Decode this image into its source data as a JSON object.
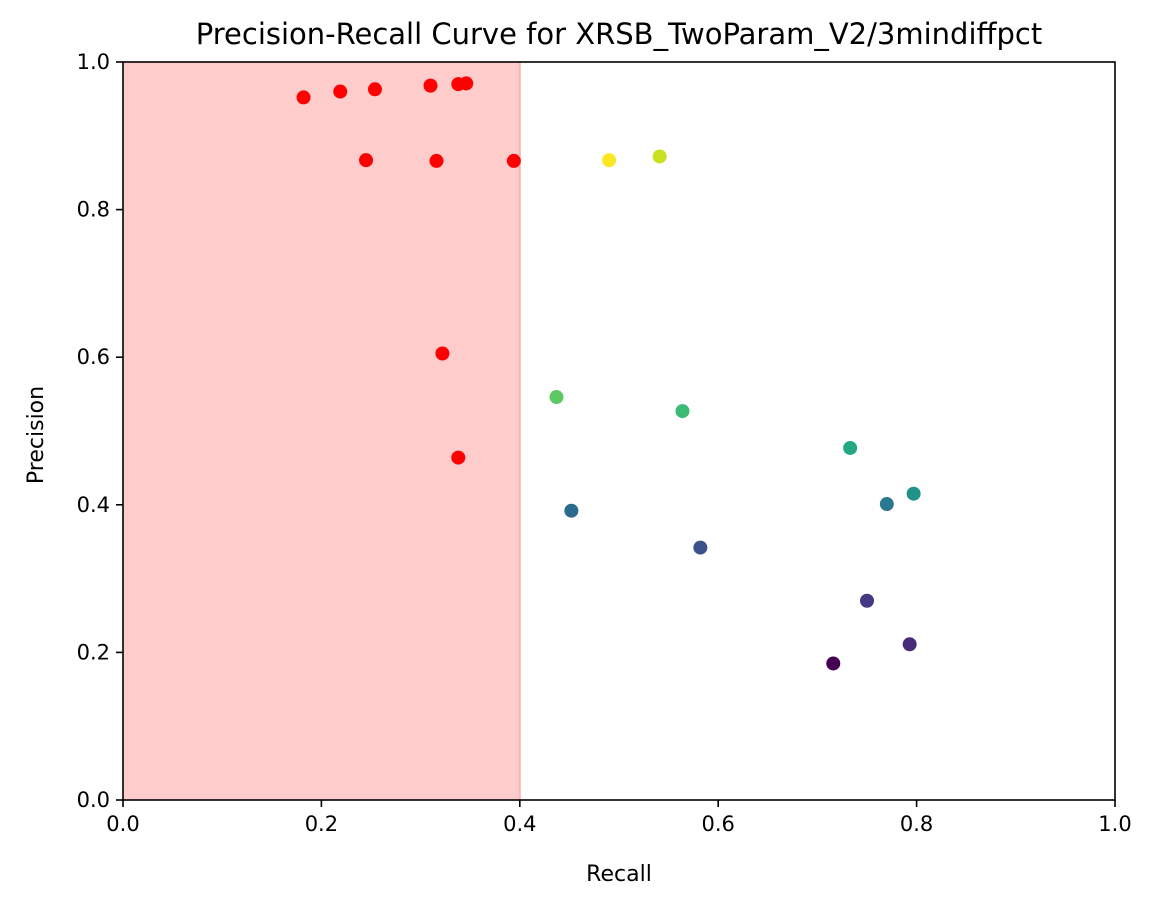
{
  "chart_data": {
    "type": "scatter",
    "title": "Precision-Recall Curve for XRSB_TwoParam_V2/3mindiffpct",
    "xlabel": "Recall",
    "ylabel": "Precision",
    "xlim": [
      0.0,
      1.0
    ],
    "ylim": [
      0.0,
      1.0
    ],
    "grid": false,
    "legend": "none",
    "x_ticks": [
      "0.0",
      "0.2",
      "0.4",
      "0.6",
      "0.8",
      "1.0"
    ],
    "y_ticks": [
      "0.0",
      "0.2",
      "0.4",
      "0.6",
      "0.8",
      "1.0"
    ],
    "shaded_region": {
      "x_range": [
        0.0,
        0.4
      ],
      "color": "#ffcccc"
    },
    "points": [
      {
        "x": 0.182,
        "y": 0.952,
        "color": "#ff0000"
      },
      {
        "x": 0.219,
        "y": 0.96,
        "color": "#ff0000"
      },
      {
        "x": 0.254,
        "y": 0.963,
        "color": "#ff0000"
      },
      {
        "x": 0.31,
        "y": 0.968,
        "color": "#ff0000"
      },
      {
        "x": 0.338,
        "y": 0.97,
        "color": "#ff0000"
      },
      {
        "x": 0.346,
        "y": 0.971,
        "color": "#ff0000"
      },
      {
        "x": 0.245,
        "y": 0.867,
        "color": "#ff0000"
      },
      {
        "x": 0.316,
        "y": 0.866,
        "color": "#ff0000"
      },
      {
        "x": 0.394,
        "y": 0.866,
        "color": "#ff0000"
      },
      {
        "x": 0.322,
        "y": 0.605,
        "color": "#ff0000"
      },
      {
        "x": 0.338,
        "y": 0.464,
        "color": "#ff0000"
      },
      {
        "x": 0.49,
        "y": 0.867,
        "color": "#fde725"
      },
      {
        "x": 0.541,
        "y": 0.872,
        "color": "#c8e020"
      },
      {
        "x": 0.437,
        "y": 0.546,
        "color": "#5ec962"
      },
      {
        "x": 0.564,
        "y": 0.527,
        "color": "#3bbb75"
      },
      {
        "x": 0.733,
        "y": 0.477,
        "color": "#22a884"
      },
      {
        "x": 0.797,
        "y": 0.415,
        "color": "#21918c"
      },
      {
        "x": 0.77,
        "y": 0.401,
        "color": "#2a788e"
      },
      {
        "x": 0.452,
        "y": 0.392,
        "color": "#2c6a8e"
      },
      {
        "x": 0.582,
        "y": 0.342,
        "color": "#3b528b"
      },
      {
        "x": 0.75,
        "y": 0.27,
        "color": "#443983"
      },
      {
        "x": 0.793,
        "y": 0.211,
        "color": "#472c7a"
      },
      {
        "x": 0.716,
        "y": 0.185,
        "color": "#440154"
      }
    ]
  }
}
